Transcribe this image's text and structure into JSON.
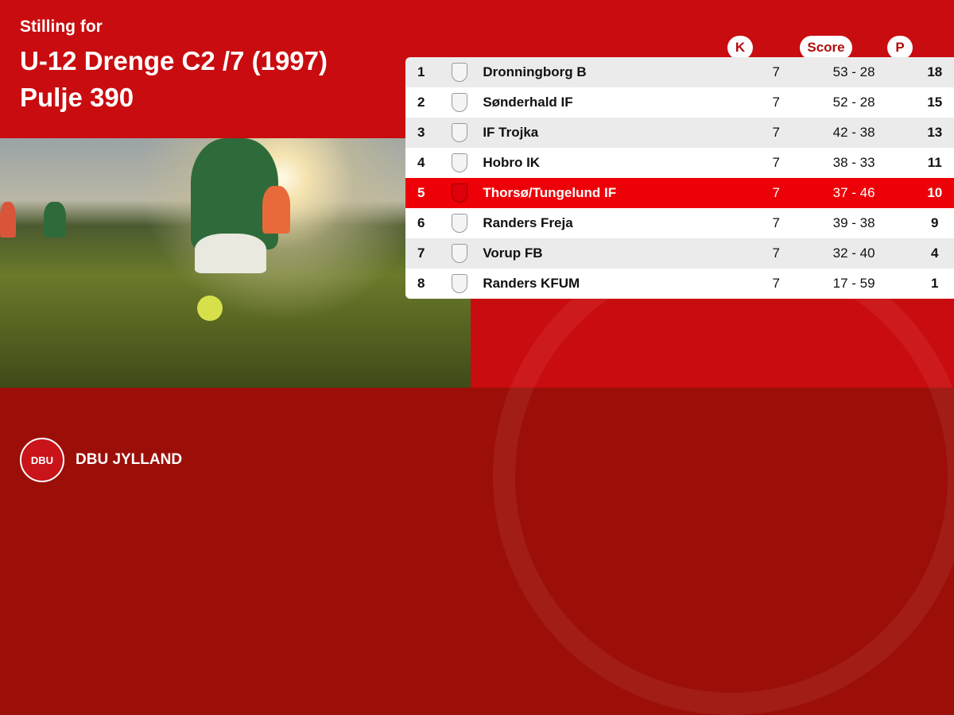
{
  "header": {
    "subtitle": "Stilling for",
    "title": "U-12 Drenge C2 /7 (1997)",
    "pool": "Pulje 390"
  },
  "columns": {
    "k": "K",
    "score": "Score",
    "p": "P"
  },
  "rows": [
    {
      "pos": "1",
      "team": "Dronningborg B",
      "k": "7",
      "score": "53 - 28",
      "p": "18"
    },
    {
      "pos": "2",
      "team": "Sønderhald IF",
      "k": "7",
      "score": "52 - 28",
      "p": "15"
    },
    {
      "pos": "3",
      "team": "IF Trojka",
      "k": "7",
      "score": "42 - 38",
      "p": "13"
    },
    {
      "pos": "4",
      "team": "Hobro IK",
      "k": "7",
      "score": "38 - 33",
      "p": "11"
    },
    {
      "pos": "5",
      "team": "Thorsø/Tungelund IF",
      "k": "7",
      "score": "37 - 46",
      "p": "10",
      "highlighted": true
    },
    {
      "pos": "6",
      "team": "Randers Freja",
      "k": "7",
      "score": "39 - 38",
      "p": "9"
    },
    {
      "pos": "7",
      "team": "Vorup FB",
      "k": "7",
      "score": "32 - 40",
      "p": "4"
    },
    {
      "pos": "8",
      "team": "Randers KFUM",
      "k": "7",
      "score": "17 - 59",
      "p": "1"
    }
  ],
  "footer": {
    "logo_text": "DBU",
    "brand": "DBU JYLLAND"
  },
  "colors": {
    "primary": "#c90c0f",
    "footer": "#9c0f08",
    "highlight": "#ee0008"
  }
}
